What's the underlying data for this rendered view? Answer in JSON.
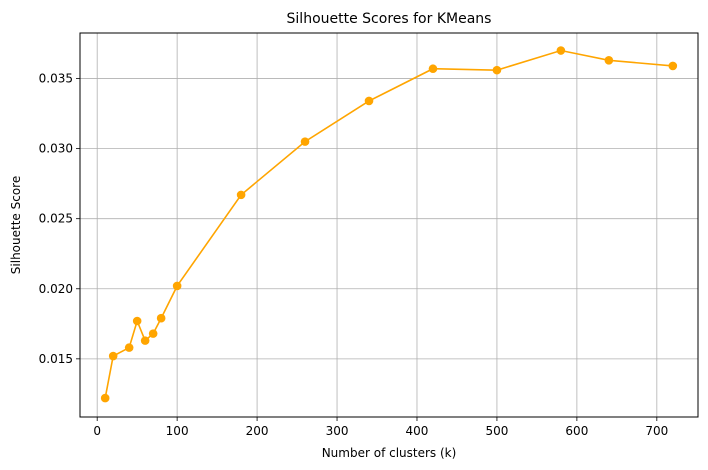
{
  "chart_data": {
    "type": "line",
    "title": "Silhouette Scores for KMeans",
    "xlabel": "Number of clusters (k)",
    "ylabel": "Silhouette Score",
    "xlim": [
      -21.5,
      751.5
    ],
    "ylim": [
      0.01085,
      0.03825
    ],
    "xticks": [
      0,
      100,
      200,
      300,
      400,
      500,
      600,
      700
    ],
    "yticks": [
      0.015,
      0.02,
      0.025,
      0.03,
      0.035
    ],
    "ytick_labels": [
      "0.015",
      "0.020",
      "0.025",
      "0.030",
      "0.035"
    ],
    "grid": true,
    "marker": "circle",
    "color": "#FFA500",
    "x": [
      10,
      20,
      40,
      50,
      60,
      70,
      80,
      100,
      180,
      260,
      340,
      420,
      500,
      580,
      640,
      720
    ],
    "y": [
      0.0122,
      0.0152,
      0.0158,
      0.0177,
      0.0163,
      0.0168,
      0.0179,
      0.0202,
      0.0267,
      0.0305,
      0.0334,
      0.0357,
      0.0356,
      0.037,
      0.0363,
      0.0359
    ]
  }
}
